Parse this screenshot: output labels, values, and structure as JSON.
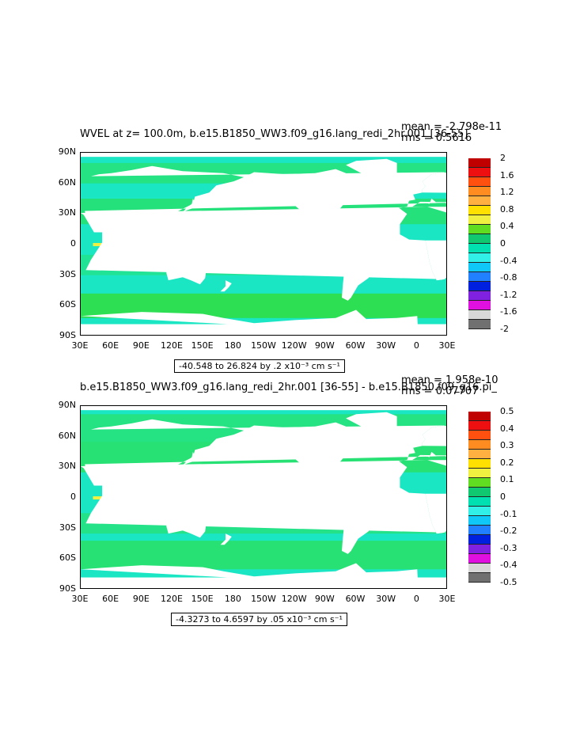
{
  "panels": [
    {
      "title": "WVEL at z= 100.0m, b.e15.B1850_WW3.f09_g16.lang_redi_2hr.001 [36-55]",
      "mean": "mean = -2.798e-11",
      "rms": "rms = 0.5616",
      "range": "-40.548 to 26.824 by .2 x10⁻³ cm s⁻¹",
      "colorbar_labels": [
        "2",
        "1.6",
        "1.2",
        "0.8",
        "0.4",
        "0",
        "-0.4",
        "-0.8",
        "-1.2",
        "-1.6",
        "-2"
      ],
      "colors": [
        "#c00000",
        "#ee1010",
        "#ff5010",
        "#ff8c20",
        "#ffb040",
        "#ffe000",
        "#f0f040",
        "#60dd20",
        "#10c870",
        "#00e0b0",
        "#30f0e8",
        "#10c8f8",
        "#2080ff",
        "#0020e0",
        "#8020e0",
        "#e010e0",
        "#d8d8d8",
        "#707070"
      ]
    },
    {
      "title": "b.e15.B1850_WW3.f09_g16.lang_redi_2hr.001 [36-55] - b.e15.B1850.f09_g16.pi_",
      "mean": "mean = 1.958e-10",
      "rms": "rms = 0.07707",
      "range": "-4.3273 to 4.6597 by .05 x10⁻³ cm s⁻¹",
      "colorbar_labels": [
        "0.5",
        "0.4",
        "0.3",
        "0.2",
        "0.1",
        "0",
        "-0.1",
        "-0.2",
        "-0.3",
        "-0.4",
        "-0.5"
      ],
      "colors": [
        "#c00000",
        "#ee1010",
        "#ff5010",
        "#ff8c20",
        "#ffb040",
        "#ffe000",
        "#f0f040",
        "#60dd20",
        "#10c870",
        "#00e0b0",
        "#30f0e8",
        "#10c8f8",
        "#2080ff",
        "#0020e0",
        "#8020e0",
        "#e010e0",
        "#d8d8d8",
        "#707070"
      ]
    }
  ],
  "y_axis": [
    "90N",
    "60N",
    "30N",
    "0",
    "30S",
    "60S",
    "90S"
  ],
  "x_axis": [
    "30E",
    "60E",
    "90E",
    "120E",
    "150E",
    "180",
    "150W",
    "120W",
    "90W",
    "60W",
    "30W",
    "0",
    "30E"
  ],
  "colors": {
    "ocean": "#1ae6c4",
    "band": "#30dd40",
    "land": "#ffffff"
  }
}
